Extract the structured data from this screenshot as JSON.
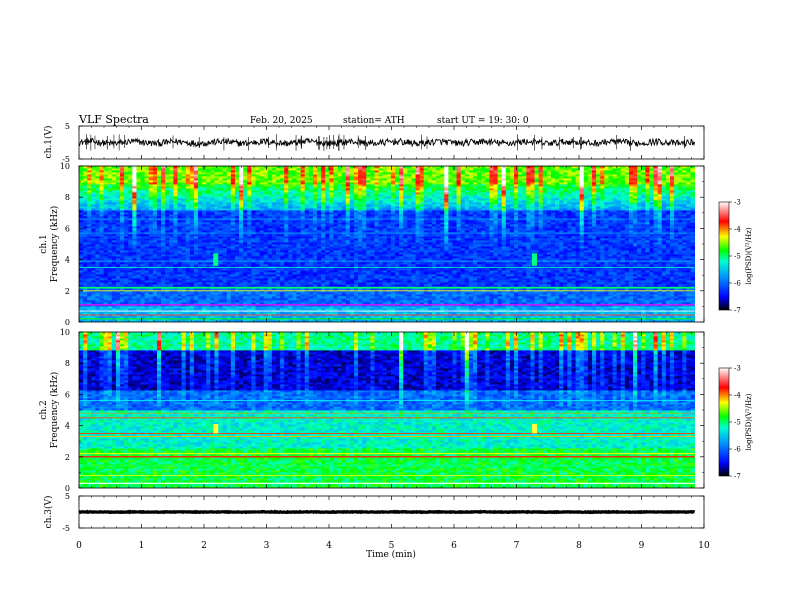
{
  "header": {
    "title": "VLF  Spectra",
    "date": "Feb. 20, 2025",
    "station": "station= ATH",
    "start": "start  UT  =    19: 30: 0"
  },
  "chart_data": [
    {
      "type": "line",
      "name": "ch1-voltage",
      "ylabel": "ch.1(V)",
      "ylim": [
        -5,
        5
      ],
      "yticks": [
        "5",
        "-5"
      ],
      "xlim": [
        0,
        10
      ],
      "data_extent_min": [
        0,
        9.85
      ],
      "trace_level_v": 0,
      "trace_amplitude_v": 1
    },
    {
      "type": "heatmap",
      "name": "ch1-spectrogram",
      "ylabel": "ch.1\nFrequency (kHz)",
      "ylim": [
        0,
        10
      ],
      "yticks": [
        "0",
        "2",
        "4",
        "6",
        "8",
        "10"
      ],
      "xlim": [
        0,
        10
      ],
      "colorbar": {
        "label": "log(PSD)(V²/Hz)",
        "range": [
          -7,
          -3
        ],
        "ticks": [
          "-3",
          "-4",
          "-5",
          "-6",
          "-7"
        ]
      }
    },
    {
      "type": "heatmap",
      "name": "ch2-spectrogram",
      "ylabel": "ch.2\nFrequency (kHz)",
      "ylim": [
        0,
        10
      ],
      "yticks": [
        "0",
        "2",
        "4",
        "6",
        "8",
        "10"
      ],
      "xlim": [
        0,
        10
      ],
      "colorbar": {
        "label": "log(PSD)(V²/Hz)",
        "range": [
          -7,
          -3
        ],
        "ticks": [
          "-3",
          "-4",
          "-5",
          "-6",
          "-7"
        ]
      }
    },
    {
      "type": "line",
      "name": "ch3-voltage",
      "ylabel": "ch.3(V)",
      "ylim": [
        -5,
        5
      ],
      "yticks": [
        "5",
        "-5"
      ],
      "xlim": [
        0,
        10
      ],
      "data_extent_min": [
        0,
        9.85
      ],
      "trace_level_v": 0,
      "trace_amplitude_v": 0.1,
      "xlabel": "Time  (min)",
      "xticks": [
        "0",
        "1",
        "2",
        "3",
        "4",
        "5",
        "6",
        "7",
        "8",
        "9",
        "10"
      ]
    }
  ],
  "colors": {
    "trace": "#000000",
    "colormap": [
      "#000080",
      "#0000ff",
      "#0080ff",
      "#00ffff",
      "#00ff00",
      "#ffff00",
      "#ff0000",
      "#ffffff"
    ]
  }
}
